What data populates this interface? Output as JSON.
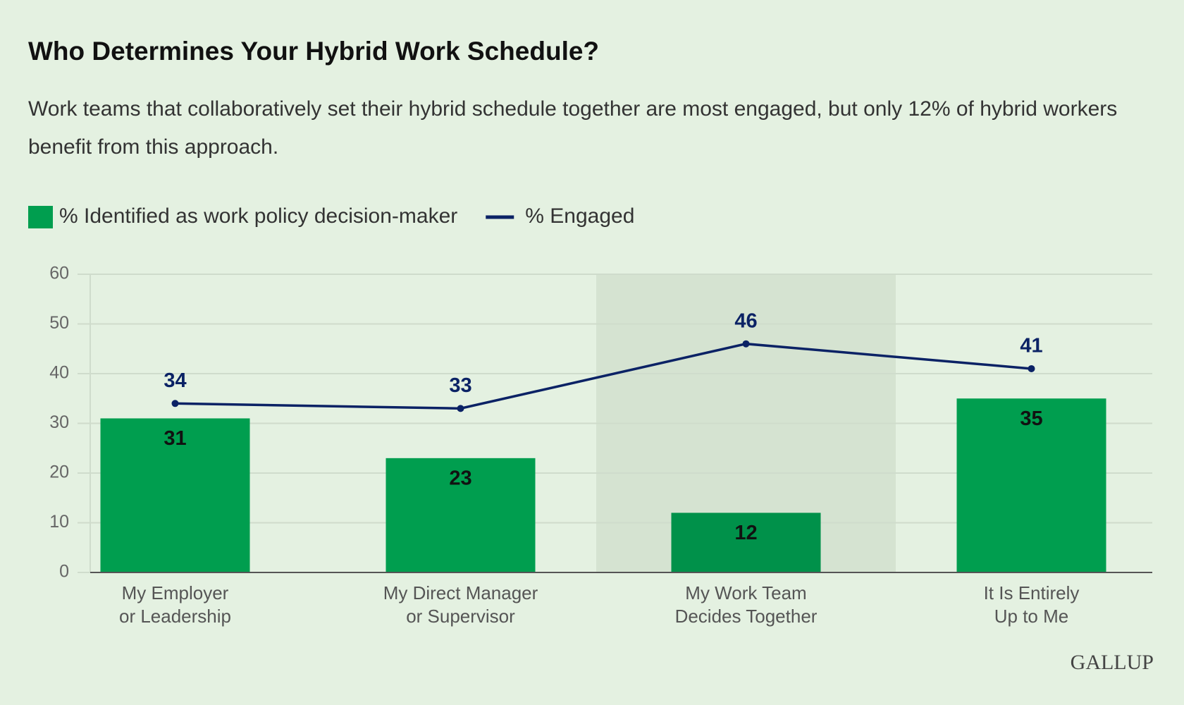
{
  "chart_data": {
    "type": "bar",
    "title": "Who Determines Your Hybrid Work Schedule?",
    "subtitle": "Work teams that collaboratively set their hybrid schedule together are most engaged, but only 12% of hybrid workers benefit from this approach.",
    "categories": [
      [
        "My Employer",
        "or Leadership"
      ],
      [
        "My Direct Manager",
        "or Supervisor"
      ],
      [
        "My Work Team",
        "Decides Together"
      ],
      [
        "It Is Entirely",
        "Up to Me"
      ]
    ],
    "series": [
      {
        "name": "% Identified as work policy decision-maker",
        "type": "bar",
        "color": "#009e4f",
        "values": [
          31,
          23,
          12,
          35
        ]
      },
      {
        "name": "% Engaged",
        "type": "line",
        "color": "#0b2265",
        "values": [
          34,
          33,
          46,
          41
        ]
      }
    ],
    "ylim": [
      0,
      60
    ],
    "yticks": [
      0,
      10,
      20,
      30,
      40,
      50,
      60
    ],
    "grid": true,
    "highlight_index": 2,
    "legend": "top-left",
    "source_logo": "GALLUP"
  }
}
